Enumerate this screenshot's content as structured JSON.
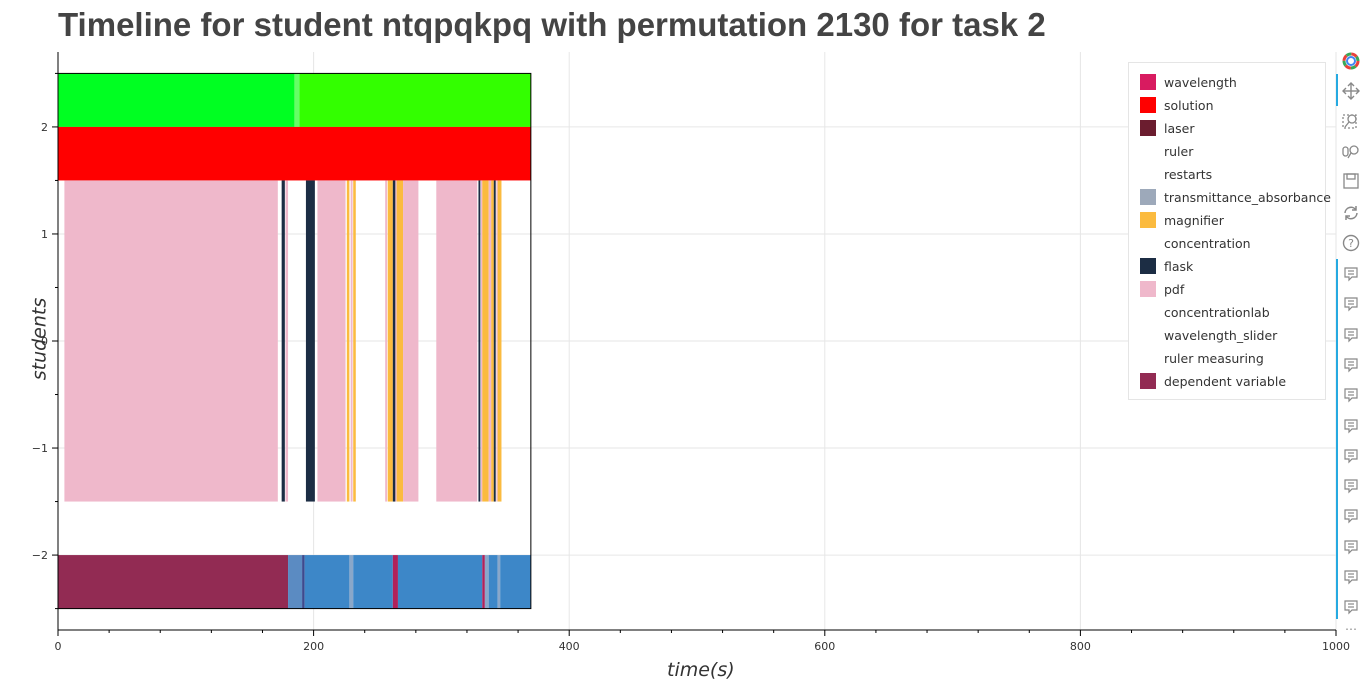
{
  "title": "Timeline for student ntqpqkpq with permutation 2130 for task 2",
  "chart_data": {
    "type": "timeline",
    "xlabel": "time(s)",
    "ylabel": "students",
    "xlim": [
      0,
      1000
    ],
    "ylim": [
      -2.7,
      2.7
    ],
    "x_ticks": [
      0,
      200,
      400,
      600,
      800,
      1000
    ],
    "x_tick_labels": [
      "0",
      "200",
      "400",
      "600",
      "800",
      "1000"
    ],
    "y_ticks": [
      2,
      1,
      0,
      -1,
      -2
    ],
    "y_tick_labels": [
      "2",
      "1",
      "0",
      "−1",
      "−2"
    ],
    "grid": true,
    "legend_position": "top-right",
    "plot_box": {
      "x": [
        0,
        370
      ],
      "y": [
        -2.5,
        2.5
      ]
    },
    "bands": [
      {
        "name": "green row",
        "y": [
          2,
          2.5
        ],
        "segments": [
          {
            "start": 0,
            "end": 185,
            "color": "#00ff22"
          },
          {
            "start": 185,
            "end": 189,
            "color": "#66ff66"
          },
          {
            "start": 189,
            "end": 370,
            "color": "#33ff00"
          }
        ]
      },
      {
        "name": "solution",
        "y": [
          1.5,
          2
        ],
        "segments": [
          {
            "start": 0,
            "end": 370,
            "color": "#ff0000"
          }
        ]
      },
      {
        "name": "tools",
        "y": [
          -1.5,
          1.5
        ],
        "segments": [
          {
            "start": 5,
            "end": 172,
            "color": "#efb8cb"
          },
          {
            "start": 175,
            "end": 177.5,
            "color": "#1c2d44"
          },
          {
            "start": 178,
            "end": 180,
            "color": "#efb8cb"
          },
          {
            "start": 194,
            "end": 201,
            "color": "#1c2d44"
          },
          {
            "start": 203,
            "end": 225,
            "color": "#efb8cb"
          },
          {
            "start": 226,
            "end": 228,
            "color": "#fbbb3f"
          },
          {
            "start": 229,
            "end": 230.5,
            "color": "#efb8cb"
          },
          {
            "start": 231,
            "end": 233,
            "color": "#fbbb3f"
          },
          {
            "start": 256,
            "end": 257.5,
            "color": "#efb8cb"
          },
          {
            "start": 258,
            "end": 262,
            "color": "#fbbb3f"
          },
          {
            "start": 262,
            "end": 264,
            "color": "#1c2d44"
          },
          {
            "start": 264,
            "end": 265,
            "color": "#efb8cb"
          },
          {
            "start": 265,
            "end": 270,
            "color": "#fbbb3f"
          },
          {
            "start": 270,
            "end": 282,
            "color": "#efb8cb"
          },
          {
            "start": 296,
            "end": 328,
            "color": "#efb8cb"
          },
          {
            "start": 329,
            "end": 330.5,
            "color": "#1c2d44"
          },
          {
            "start": 331,
            "end": 332,
            "color": "#efb8cb"
          },
          {
            "start": 332,
            "end": 337,
            "color": "#fbbb3f"
          },
          {
            "start": 337,
            "end": 339,
            "color": "#efb8cb"
          },
          {
            "start": 339,
            "end": 341,
            "color": "#fbbb3f"
          },
          {
            "start": 341,
            "end": 342.5,
            "color": "#1c2d44"
          },
          {
            "start": 343,
            "end": 344,
            "color": "#efb8cb"
          },
          {
            "start": 344,
            "end": 347,
            "color": "#fbbb3f"
          }
        ]
      },
      {
        "name": "dependent variable",
        "y": [
          -2.5,
          -2
        ],
        "segments": [
          {
            "start": 0,
            "end": 180,
            "color": "#922b53"
          },
          {
            "start": 180,
            "end": 191,
            "color": "#5b8bc2"
          },
          {
            "start": 191,
            "end": 193,
            "color": "#3d4a8e"
          },
          {
            "start": 193,
            "end": 228,
            "color": "#3d87c8"
          },
          {
            "start": 228,
            "end": 231,
            "color": "#8aa7c9"
          },
          {
            "start": 231,
            "end": 262,
            "color": "#3d87c8"
          },
          {
            "start": 262,
            "end": 266,
            "color": "#b0215a"
          },
          {
            "start": 266,
            "end": 332,
            "color": "#3d87c8"
          },
          {
            "start": 332,
            "end": 334,
            "color": "#b0215a"
          },
          {
            "start": 334,
            "end": 337,
            "color": "#8aa7c9"
          },
          {
            "start": 337,
            "end": 344,
            "color": "#3d87c8"
          },
          {
            "start": 344,
            "end": 346,
            "color": "#8aa7c9"
          },
          {
            "start": 346,
            "end": 370,
            "color": "#3d87c8"
          }
        ]
      }
    ]
  },
  "legend": [
    {
      "label": "wavelength",
      "color": "#d81b60"
    },
    {
      "label": "solution",
      "color": "#ff0000"
    },
    {
      "label": "laser",
      "color": "#6b1d2f"
    },
    {
      "label": "ruler",
      "color": ""
    },
    {
      "label": "restarts",
      "color": ""
    },
    {
      "label": "transmittance_absorbance",
      "color": "#9da9ba"
    },
    {
      "label": "magnifier",
      "color": "#fbbb3f"
    },
    {
      "label": "concentration",
      "color": ""
    },
    {
      "label": "flask",
      "color": "#1c2d44"
    },
    {
      "label": "pdf",
      "color": "#efb8cb"
    },
    {
      "label": "concentrationlab",
      "color": ""
    },
    {
      "label": "wavelength_slider",
      "color": ""
    },
    {
      "label": "ruler measuring",
      "color": ""
    },
    {
      "label": "dependent variable",
      "color": "#922b53"
    }
  ],
  "toolbar": {
    "tools": [
      {
        "icon": "bokeh-logo-icon"
      },
      {
        "icon": "pan-icon"
      },
      {
        "icon": "box-zoom-icon"
      },
      {
        "icon": "wheel-zoom-icon"
      },
      {
        "icon": "save-icon"
      },
      {
        "icon": "reset-icon"
      },
      {
        "icon": "help-icon"
      }
    ],
    "hover_tool_count": 12,
    "hover_icon": "hover-tooltip-icon",
    "more_label": "⋯"
  }
}
